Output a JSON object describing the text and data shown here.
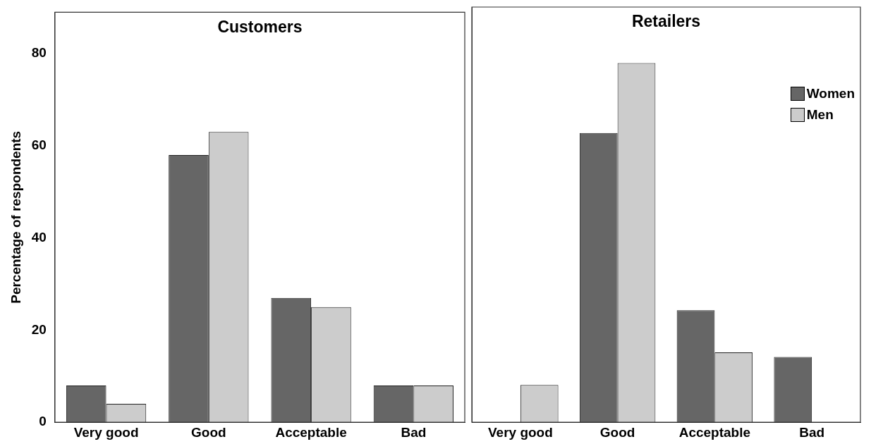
{
  "chart_data": [
    {
      "type": "bar",
      "title": "Customers",
      "ylabel": "Percentage of respondents",
      "categories": [
        "Very good",
        "Good",
        "Acceptable",
        "Bad"
      ],
      "series": [
        {
          "color": "#666666",
          "values": [
            8,
            58,
            27,
            8
          ]
        },
        {
          "color": "#cccccc",
          "values": [
            4,
            63,
            25,
            8
          ]
        }
      ],
      "ylim": [
        0,
        89
      ],
      "yticks": [
        0,
        20,
        40,
        60,
        80
      ],
      "grid": false
    },
    {
      "type": "bar",
      "title": "Retailers",
      "categories": [
        "Very good",
        "Good",
        "Acceptable",
        "Bad"
      ],
      "series": [
        {
          "name": "Women",
          "color": "#666666",
          "values": [
            0,
            62,
            24,
            14
          ]
        },
        {
          "name": "Men",
          "color": "#cccccc",
          "values": [
            8,
            77,
            15,
            0
          ]
        }
      ],
      "ylim": [
        0,
        89
      ],
      "yticks": [
        0,
        20,
        40,
        60,
        80
      ],
      "grid": false,
      "legend": "top right",
      "tick_labels": "x"
    }
  ]
}
